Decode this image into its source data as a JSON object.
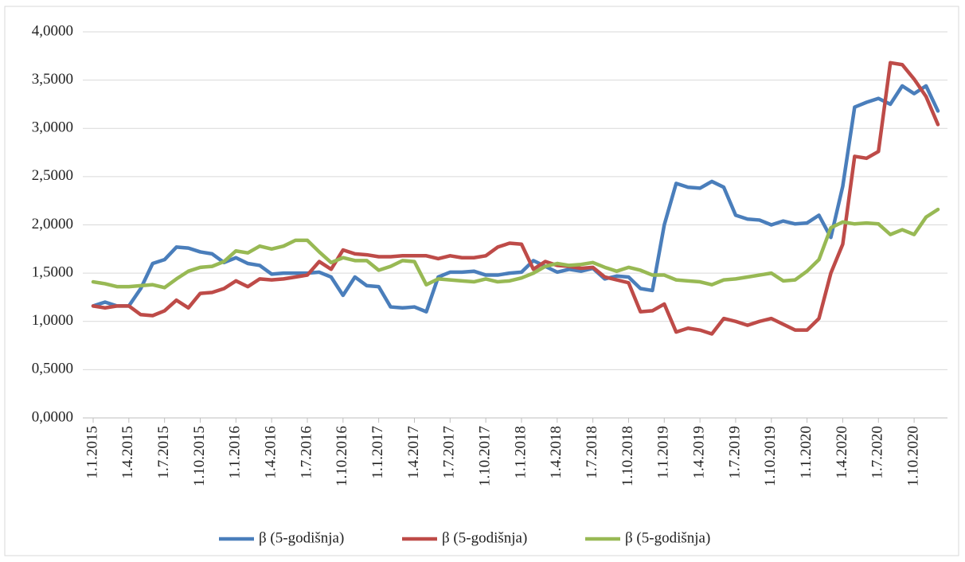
{
  "chart_data": {
    "type": "line",
    "categories": [
      "1.1.2015",
      null,
      null,
      "1.4.2015",
      null,
      null,
      "1.7.2015",
      null,
      null,
      "1.10.2015",
      null,
      null,
      "1.1.2016",
      null,
      null,
      "1.4.2016",
      null,
      null,
      "1.7.2016",
      null,
      null,
      "1.10.2016",
      null,
      null,
      "1.1.2017",
      null,
      null,
      "1.4.2017",
      null,
      null,
      "1.7.2017",
      null,
      null,
      "1.10.2017",
      null,
      null,
      "1.1.2018",
      null,
      null,
      "1.4.2018",
      null,
      null,
      "1.7.2018",
      null,
      null,
      "1.10.2018",
      null,
      null,
      "1.1.2019",
      null,
      null,
      "1.4.2019",
      null,
      null,
      "1.7.2019",
      null,
      null,
      "1.10.2019",
      null,
      null,
      "1.1.2020",
      null,
      null,
      "1.4.2020",
      null,
      null,
      "1.7.2020",
      null,
      null,
      "1.10.2020",
      null,
      null
    ],
    "series": [
      {
        "name": "β (5-godišnja)",
        "color": "#4a7ebb",
        "values": [
          1.16,
          1.2,
          1.16,
          1.16,
          1.34,
          1.6,
          1.64,
          1.77,
          1.76,
          1.72,
          1.7,
          1.61,
          1.66,
          1.6,
          1.58,
          1.49,
          1.5,
          1.5,
          1.5,
          1.51,
          1.46,
          1.27,
          1.46,
          1.37,
          1.36,
          1.15,
          1.14,
          1.15,
          1.1,
          1.46,
          1.51,
          1.51,
          1.52,
          1.48,
          1.48,
          1.5,
          1.51,
          1.63,
          1.57,
          1.51,
          1.54,
          1.52,
          1.55,
          1.44,
          1.47,
          1.46,
          1.34,
          1.32,
          2.0,
          2.43,
          2.39,
          2.38,
          2.45,
          2.39,
          2.1,
          2.06,
          2.05,
          2.0,
          2.04,
          2.01,
          2.02,
          2.1,
          1.87,
          2.4,
          3.22,
          3.27,
          3.31,
          3.25,
          3.44,
          3.36,
          3.44,
          3.18
        ]
      },
      {
        "name": "β (5-godišnja)",
        "color": "#be4b48",
        "values": [
          1.16,
          1.14,
          1.16,
          1.16,
          1.07,
          1.06,
          1.11,
          1.22,
          1.14,
          1.29,
          1.3,
          1.34,
          1.42,
          1.36,
          1.44,
          1.43,
          1.44,
          1.46,
          1.48,
          1.62,
          1.54,
          1.74,
          1.7,
          1.69,
          1.67,
          1.67,
          1.68,
          1.68,
          1.68,
          1.65,
          1.68,
          1.66,
          1.66,
          1.68,
          1.77,
          1.81,
          1.8,
          1.54,
          1.62,
          1.58,
          1.57,
          1.55,
          1.56,
          1.46,
          1.43,
          1.4,
          1.1,
          1.11,
          1.18,
          0.89,
          0.93,
          0.91,
          0.87,
          1.03,
          1.0,
          0.96,
          1.0,
          1.03,
          0.97,
          0.91,
          0.91,
          1.03,
          1.5,
          1.8,
          2.71,
          2.69,
          2.76,
          3.68,
          3.66,
          3.51,
          3.33,
          3.04
        ]
      },
      {
        "name": "β (5-godišnja)",
        "color": "#98b954",
        "values": [
          1.41,
          1.39,
          1.36,
          1.36,
          1.37,
          1.38,
          1.35,
          1.44,
          1.52,
          1.56,
          1.57,
          1.62,
          1.73,
          1.71,
          1.78,
          1.75,
          1.78,
          1.84,
          1.84,
          1.72,
          1.61,
          1.66,
          1.63,
          1.63,
          1.53,
          1.57,
          1.63,
          1.62,
          1.38,
          1.44,
          1.43,
          1.42,
          1.41,
          1.44,
          1.41,
          1.42,
          1.45,
          1.5,
          1.57,
          1.6,
          1.58,
          1.59,
          1.61,
          1.56,
          1.52,
          1.56,
          1.53,
          1.48,
          1.48,
          1.43,
          1.42,
          1.41,
          1.38,
          1.43,
          1.44,
          1.46,
          1.48,
          1.5,
          1.42,
          1.43,
          1.52,
          1.64,
          1.97,
          2.03,
          2.01,
          2.02,
          2.01,
          1.9,
          1.95,
          1.9,
          2.08,
          2.16
        ]
      }
    ],
    "ylim": [
      0,
      4
    ],
    "yticks": [
      {
        "value": 0,
        "label": "0,0000"
      },
      {
        "value": 0.5,
        "label": "0,5000"
      },
      {
        "value": 1,
        "label": "1,0000"
      },
      {
        "value": 1.5,
        "label": "1,5000"
      },
      {
        "value": 2,
        "label": "2,0000"
      },
      {
        "value": 2.5,
        "label": "2,5000"
      },
      {
        "value": 3,
        "label": "3,0000"
      },
      {
        "value": 3.5,
        "label": "3,5000"
      },
      {
        "value": 4,
        "label": "4,0000"
      }
    ],
    "grid": true,
    "legend": "bottom"
  }
}
